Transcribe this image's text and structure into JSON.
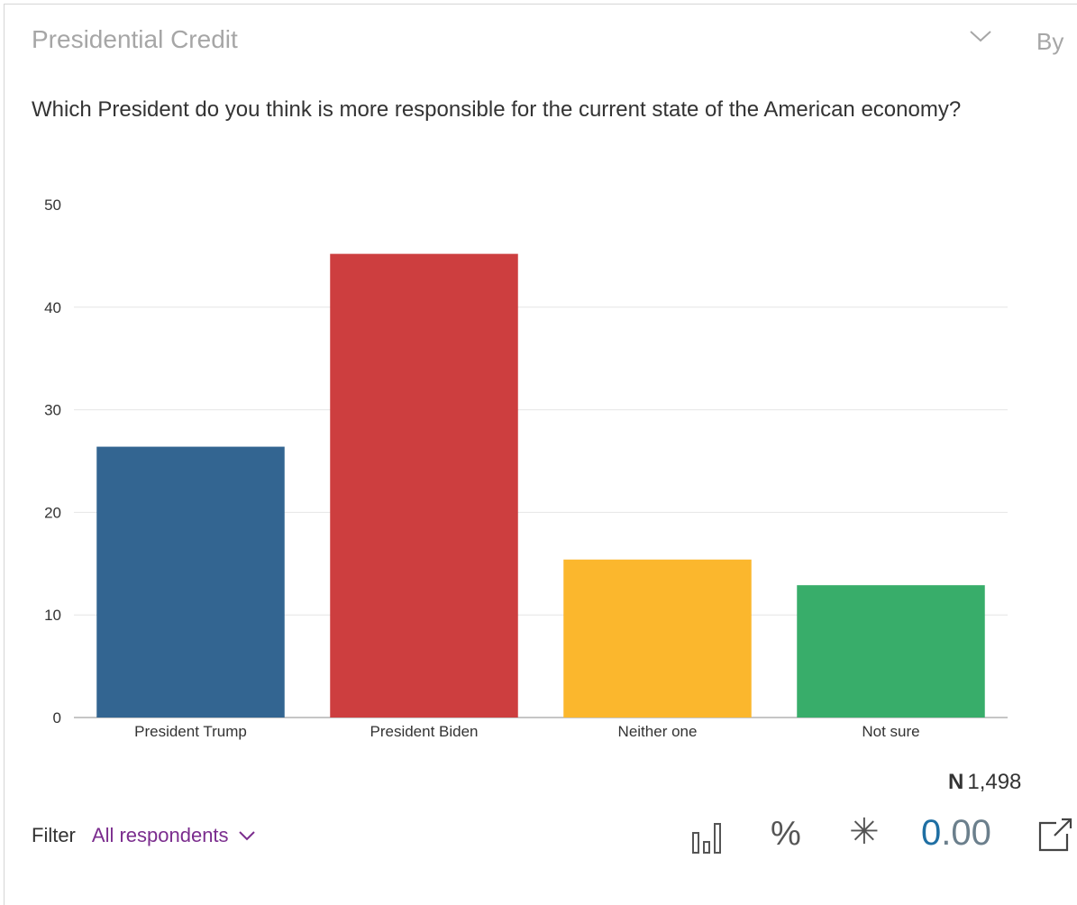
{
  "card": {
    "title": "Presidential Credit",
    "by_label": "By",
    "question": "Which President do you think is more responsible for the current state of the American economy?"
  },
  "chart_data": {
    "type": "bar",
    "categories": [
      "President Trump",
      "President Biden",
      "Neither one",
      "Not sure"
    ],
    "values": [
      26.4,
      45.2,
      15.4,
      12.9
    ],
    "colors": [
      "#336591",
      "#cd3e3f",
      "#fbb72d",
      "#38ad6a"
    ],
    "ylim": [
      0,
      50
    ],
    "yticks": [
      0,
      10,
      20,
      30,
      40,
      50
    ],
    "grid": true,
    "title": "",
    "xlabel": "",
    "ylabel": ""
  },
  "footer": {
    "n_label": "N",
    "n_value": "1,498",
    "filter_label": "Filter",
    "filter_value": "All respondents",
    "percent_symbol": "%",
    "star_symbol": "✳",
    "decimals_lead": "0",
    "decimals_rest": ".00"
  },
  "icons": {
    "collapse": "chevron-down-icon",
    "chart_type": "bar-chart-icon",
    "export": "external-link-icon"
  }
}
